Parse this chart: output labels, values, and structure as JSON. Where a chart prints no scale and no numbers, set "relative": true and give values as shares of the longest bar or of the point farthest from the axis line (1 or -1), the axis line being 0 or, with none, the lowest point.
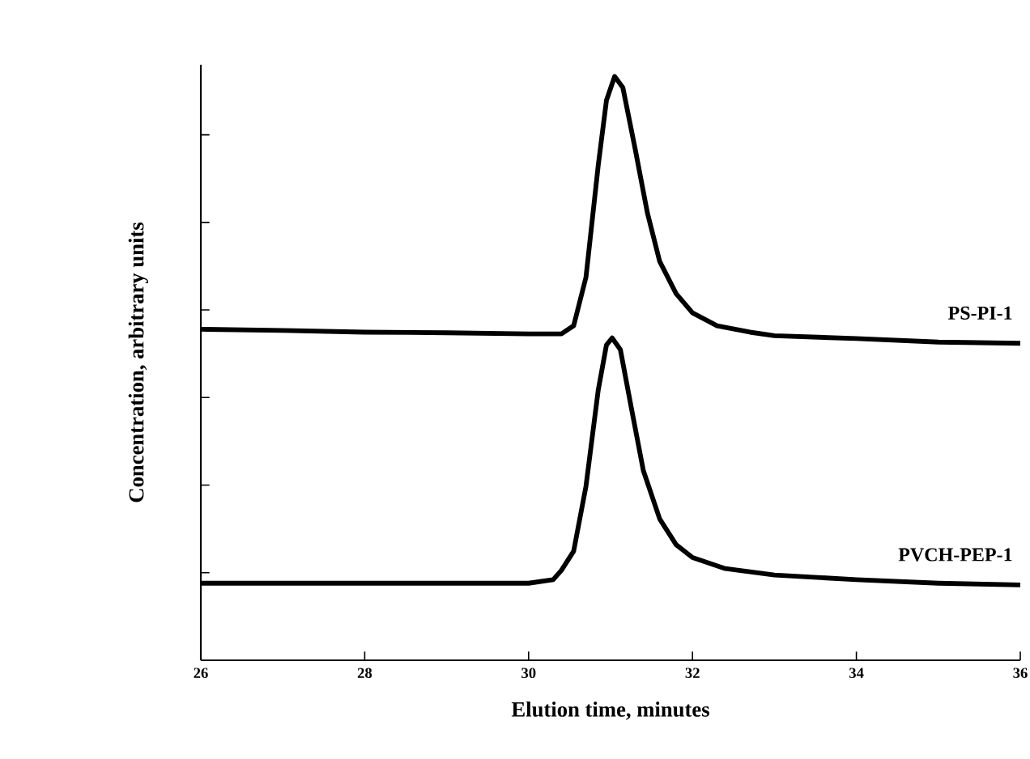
{
  "chart_data": {
    "type": "line",
    "relative": true,
    "xlabel": "Elution time, minutes",
    "ylabel": "Concentration, arbitrary units",
    "xlim": [
      26,
      36
    ],
    "xticks": [
      26,
      28,
      30,
      32,
      34,
      36
    ],
    "grid": false,
    "marker": "none",
    "line_style": "solid",
    "series": [
      {
        "name": "PS-PI-1",
        "color": "#000000",
        "x": [
          26,
          27,
          28,
          29,
          30,
          30.4,
          30.55,
          30.7,
          30.85,
          30.95,
          31.05,
          31.15,
          31.3,
          31.45,
          31.6,
          31.8,
          32.0,
          32.3,
          32.7,
          33,
          34,
          35,
          36
        ],
        "values": [
          0.567,
          0.565,
          0.562,
          0.561,
          0.559,
          0.559,
          0.573,
          0.656,
          0.848,
          0.959,
          1.0,
          0.981,
          0.876,
          0.766,
          0.683,
          0.628,
          0.595,
          0.573,
          0.562,
          0.556,
          0.551,
          0.545,
          0.543
        ]
      },
      {
        "name": "PVCH-PEP-1",
        "color": "#000000",
        "x": [
          26,
          28,
          30,
          30.3,
          30.4,
          30.55,
          30.7,
          30.85,
          30.95,
          31.02,
          31.12,
          31.25,
          31.4,
          31.6,
          31.8,
          32,
          32.4,
          33,
          34,
          35,
          36
        ],
        "values": [
          0.132,
          0.132,
          0.132,
          0.138,
          0.154,
          0.187,
          0.298,
          0.463,
          0.54,
          0.552,
          0.532,
          0.435,
          0.325,
          0.242,
          0.198,
          0.176,
          0.157,
          0.146,
          0.138,
          0.132,
          0.129
        ]
      }
    ]
  }
}
